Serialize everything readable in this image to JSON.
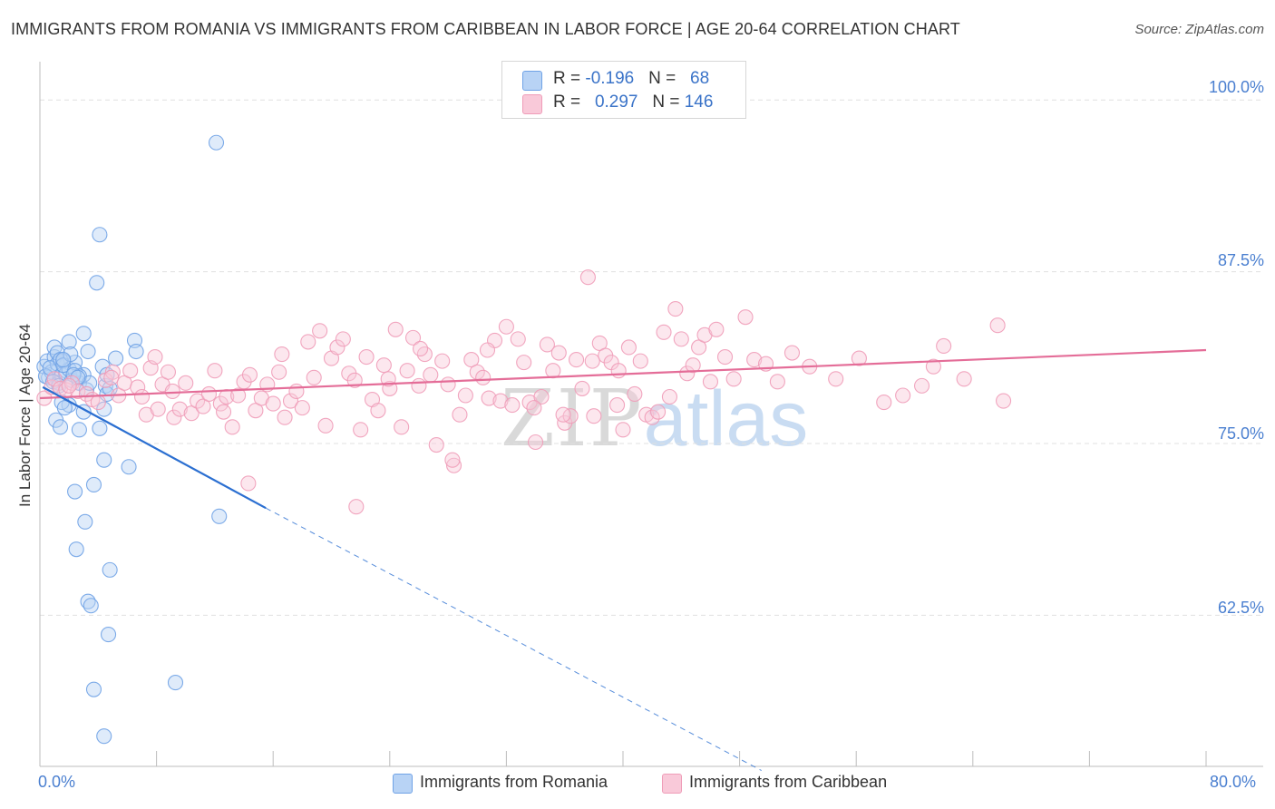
{
  "title": "IMMIGRANTS FROM ROMANIA VS IMMIGRANTS FROM CARIBBEAN IN LABOR FORCE | AGE 20-64 CORRELATION CHART",
  "source": "Source: ZipAtlas.com",
  "watermark": {
    "zip": "ZIP",
    "atlas": "atlas"
  },
  "colors": {
    "romania": "#6fa2e6",
    "romania_fill": "#b8d3f5",
    "romania_line": "#2b6fd1",
    "caribbean": "#ef9cb8",
    "caribbean_fill": "#f9c9d9",
    "caribbean_line": "#e46d98",
    "axis_text": "#4a7fd0",
    "grid": "#e0e0e0"
  },
  "legend": {
    "rows": [
      {
        "r_label": "R = ",
        "r_value": "-0.196",
        "n_label": "N = ",
        "n_value": "68"
      },
      {
        "r_label": "R = ",
        "r_value": "0.297",
        "n_label": "N = ",
        "n_value": "146"
      }
    ]
  },
  "chart_data": {
    "type": "scatter",
    "title": "IMMIGRANTS FROM ROMANIA VS IMMIGRANTS FROM CARIBBEAN IN LABOR FORCE | AGE 20-64 CORRELATION CHART",
    "xlabel": "",
    "ylabel": "In Labor Force | Age 20-64",
    "xlim": [
      0,
      80
    ],
    "ylim": [
      51.5,
      102
    ],
    "x_tick_labels": [
      "0.0%",
      "80.0%"
    ],
    "y_ticks": [
      62.5,
      75.0,
      87.5,
      100.0
    ],
    "y_tick_labels": [
      "62.5%",
      "75.0%",
      "87.5%",
      "100.0%"
    ],
    "grid": true,
    "legend_position": "bottom-center",
    "series": [
      {
        "name": "Immigrants from Romania",
        "R": -0.196,
        "N": 68,
        "trend": {
          "x0": 0.2,
          "y0": 79.1,
          "x1": 15.5,
          "y1": 70.3,
          "dash_to_x": 49.5,
          "dash_to_y": 51.2
        },
        "points": [
          [
            0.3,
            80.6
          ],
          [
            0.5,
            81.0
          ],
          [
            0.6,
            79.8
          ],
          [
            0.8,
            80.2
          ],
          [
            1.0,
            81.3
          ],
          [
            1.2,
            80.8
          ],
          [
            1.3,
            79.4
          ],
          [
            0.4,
            79.9
          ],
          [
            0.7,
            80.5
          ],
          [
            1.5,
            80.0
          ],
          [
            1.6,
            81.0
          ],
          [
            1.8,
            80.1
          ],
          [
            2.0,
            80.4
          ],
          [
            2.2,
            79.6
          ],
          [
            2.4,
            80.9
          ],
          [
            2.7,
            79.4
          ],
          [
            3.0,
            80.0
          ],
          [
            1.0,
            82.0
          ],
          [
            1.2,
            81.6
          ],
          [
            1.4,
            81.1
          ],
          [
            1.6,
            80.7
          ],
          [
            2.0,
            82.4
          ],
          [
            2.4,
            80.3
          ],
          [
            2.7,
            79.9
          ],
          [
            3.2,
            78.9
          ],
          [
            3.0,
            77.3
          ],
          [
            3.4,
            79.4
          ],
          [
            4.5,
            79.2
          ],
          [
            4.3,
            80.6
          ],
          [
            2.0,
            77.8
          ],
          [
            1.5,
            78.0
          ],
          [
            1.7,
            77.6
          ],
          [
            1.1,
            76.7
          ],
          [
            1.4,
            76.2
          ],
          [
            2.7,
            76.0
          ],
          [
            4.1,
            76.1
          ],
          [
            3.0,
            83.0
          ],
          [
            3.3,
            81.7
          ],
          [
            2.1,
            81.5
          ],
          [
            1.6,
            81.1
          ],
          [
            6.5,
            82.5
          ],
          [
            6.6,
            81.7
          ],
          [
            5.2,
            81.2
          ],
          [
            4.6,
            80.0
          ],
          [
            4.6,
            78.6
          ],
          [
            4.4,
            77.5
          ],
          [
            4.8,
            79.0
          ],
          [
            0.9,
            79.5
          ],
          [
            2.3,
            80.0
          ],
          [
            4.4,
            73.8
          ],
          [
            6.1,
            73.3
          ],
          [
            3.7,
            72.0
          ],
          [
            2.4,
            71.5
          ],
          [
            12.3,
            69.7
          ],
          [
            3.1,
            69.3
          ],
          [
            2.5,
            67.3
          ],
          [
            4.8,
            65.8
          ],
          [
            3.3,
            63.5
          ],
          [
            3.5,
            63.2
          ],
          [
            4.7,
            61.1
          ],
          [
            9.3,
            57.6
          ],
          [
            3.7,
            57.1
          ],
          [
            4.4,
            53.7
          ],
          [
            4.1,
            90.2
          ],
          [
            3.9,
            86.7
          ],
          [
            12.1,
            96.9
          ],
          [
            1.3,
            79.2
          ],
          [
            2.6,
            79.8
          ]
        ]
      },
      {
        "name": "Immigrants from Caribbean",
        "R": 0.297,
        "N": 146,
        "trend": {
          "x0": 0.0,
          "y0": 78.3,
          "x1": 80.0,
          "y1": 81.8
        },
        "points": [
          [
            0.3,
            78.3
          ],
          [
            0.8,
            79.1
          ],
          [
            1.0,
            79.7
          ],
          [
            1.4,
            79.0
          ],
          [
            1.8,
            78.9
          ],
          [
            2.2,
            79.4
          ],
          [
            2.6,
            78.8
          ],
          [
            3.2,
            78.6
          ],
          [
            3.6,
            78.2
          ],
          [
            4.0,
            78.0
          ],
          [
            4.5,
            79.6
          ],
          [
            5.0,
            80.2
          ],
          [
            5.4,
            78.5
          ],
          [
            5.8,
            79.4
          ],
          [
            6.2,
            80.3
          ],
          [
            6.7,
            79.1
          ],
          [
            7.0,
            78.4
          ],
          [
            7.3,
            77.1
          ],
          [
            7.6,
            80.5
          ],
          [
            8.1,
            77.5
          ],
          [
            8.4,
            79.3
          ],
          [
            8.8,
            80.2
          ],
          [
            9.2,
            76.9
          ],
          [
            9.6,
            77.5
          ],
          [
            10.0,
            79.4
          ],
          [
            10.4,
            77.2
          ],
          [
            10.8,
            78.1
          ],
          [
            11.2,
            77.7
          ],
          [
            11.6,
            78.6
          ],
          [
            12.0,
            80.3
          ],
          [
            12.4,
            77.9
          ],
          [
            12.8,
            78.4
          ],
          [
            13.2,
            76.2
          ],
          [
            13.6,
            78.5
          ],
          [
            14.0,
            79.5
          ],
          [
            14.4,
            80.0
          ],
          [
            14.8,
            77.4
          ],
          [
            15.2,
            78.3
          ],
          [
            15.6,
            79.3
          ],
          [
            16.0,
            77.9
          ],
          [
            16.4,
            80.2
          ],
          [
            16.8,
            76.9
          ],
          [
            17.2,
            78.1
          ],
          [
            17.6,
            78.8
          ],
          [
            18.0,
            77.6
          ],
          [
            18.4,
            82.4
          ],
          [
            18.8,
            79.8
          ],
          [
            19.2,
            83.2
          ],
          [
            19.6,
            76.3
          ],
          [
            20.0,
            81.2
          ],
          [
            20.4,
            82.0
          ],
          [
            20.8,
            82.6
          ],
          [
            21.2,
            80.1
          ],
          [
            21.6,
            79.6
          ],
          [
            22.0,
            76.0
          ],
          [
            22.4,
            81.3
          ],
          [
            22.8,
            78.2
          ],
          [
            23.2,
            77.4
          ],
          [
            23.6,
            80.7
          ],
          [
            24.0,
            79.0
          ],
          [
            24.4,
            83.3
          ],
          [
            24.8,
            76.2
          ],
          [
            25.2,
            80.3
          ],
          [
            25.6,
            82.7
          ],
          [
            26.0,
            79.2
          ],
          [
            26.4,
            81.5
          ],
          [
            26.8,
            80.0
          ],
          [
            27.2,
            74.9
          ],
          [
            27.6,
            81.0
          ],
          [
            28.0,
            79.3
          ],
          [
            28.4,
            73.4
          ],
          [
            28.8,
            77.1
          ],
          [
            29.2,
            78.5
          ],
          [
            29.6,
            81.1
          ],
          [
            30.0,
            80.2
          ],
          [
            30.4,
            79.8
          ],
          [
            30.8,
            78.3
          ],
          [
            31.2,
            82.5
          ],
          [
            31.6,
            78.1
          ],
          [
            32.0,
            83.5
          ],
          [
            32.4,
            77.8
          ],
          [
            32.8,
            82.6
          ],
          [
            33.2,
            80.9
          ],
          [
            33.6,
            78.0
          ],
          [
            34.0,
            75.1
          ],
          [
            34.4,
            78.4
          ],
          [
            34.8,
            82.2
          ],
          [
            35.2,
            80.3
          ],
          [
            35.6,
            81.6
          ],
          [
            36.0,
            76.5
          ],
          [
            36.4,
            77.0
          ],
          [
            36.8,
            81.1
          ],
          [
            37.2,
            79.0
          ],
          [
            37.6,
            87.1
          ],
          [
            38.0,
            77.0
          ],
          [
            38.4,
            82.3
          ],
          [
            38.8,
            81.4
          ],
          [
            39.2,
            80.9
          ],
          [
            39.6,
            77.8
          ],
          [
            40.0,
            76.0
          ],
          [
            40.4,
            82.0
          ],
          [
            40.8,
            78.6
          ],
          [
            41.2,
            81.0
          ],
          [
            41.6,
            77.1
          ],
          [
            42.0,
            76.9
          ],
          [
            42.4,
            77.3
          ],
          [
            42.8,
            83.1
          ],
          [
            43.2,
            78.4
          ],
          [
            43.6,
            84.8
          ],
          [
            44.0,
            82.6
          ],
          [
            44.4,
            80.1
          ],
          [
            44.8,
            80.7
          ],
          [
            45.2,
            82.0
          ],
          [
            45.6,
            82.9
          ],
          [
            46.0,
            79.5
          ],
          [
            46.4,
            83.3
          ],
          [
            47.0,
            81.3
          ],
          [
            47.6,
            79.7
          ],
          [
            48.4,
            84.2
          ],
          [
            49.0,
            81.1
          ],
          [
            49.8,
            80.8
          ],
          [
            50.6,
            79.5
          ],
          [
            51.6,
            81.6
          ],
          [
            52.8,
            80.6
          ],
          [
            54.6,
            79.7
          ],
          [
            56.2,
            81.2
          ],
          [
            57.9,
            78.0
          ],
          [
            59.2,
            78.5
          ],
          [
            60.5,
            79.2
          ],
          [
            61.3,
            80.6
          ],
          [
            62.0,
            82.1
          ],
          [
            63.4,
            79.7
          ],
          [
            65.7,
            83.6
          ],
          [
            66.1,
            78.1
          ],
          [
            2.0,
            79.2
          ],
          [
            4.9,
            79.8
          ],
          [
            7.9,
            81.3
          ],
          [
            12.6,
            77.3
          ],
          [
            14.3,
            72.1
          ],
          [
            21.7,
            70.4
          ],
          [
            28.3,
            73.8
          ],
          [
            33.9,
            77.6
          ],
          [
            37.9,
            81.0
          ],
          [
            23.9,
            79.7
          ],
          [
            9.1,
            78.8
          ],
          [
            16.6,
            81.5
          ],
          [
            26.1,
            81.9
          ],
          [
            30.7,
            81.8
          ],
          [
            35.9,
            77.1
          ],
          [
            39.7,
            80.3
          ]
        ]
      }
    ]
  },
  "bottom_legend": {
    "romania_label": "Immigrants from Romania",
    "caribbean_label": "Immigrants from Caribbean"
  }
}
